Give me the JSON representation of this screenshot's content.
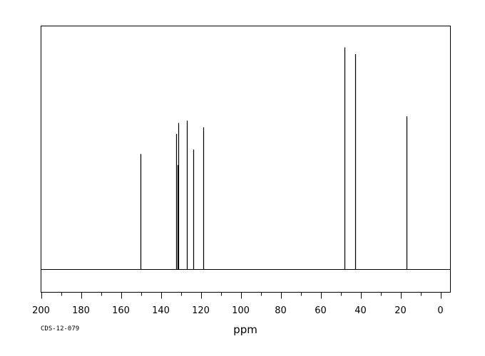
{
  "chart_data": {
    "type": "line",
    "title": "",
    "xlabel": "ppm",
    "ylabel": "",
    "xlim": [
      200,
      -5
    ],
    "ylim": [
      -0.12,
      1.1
    ],
    "x_reversed": true,
    "grid": false,
    "legend": "none",
    "baseline_y": 0,
    "major_ticks": [
      200,
      180,
      160,
      140,
      120,
      100,
      80,
      60,
      40,
      20,
      0
    ],
    "tick_labels": [
      "200",
      "180",
      "160",
      "140",
      "120",
      "100",
      "80",
      "60",
      "40",
      "20",
      "0"
    ],
    "minor_tick_step": 10,
    "peaks": [
      {
        "ppm": 150.3,
        "intensity": 0.52
      },
      {
        "ppm": 132.4,
        "intensity": 0.61
      },
      {
        "ppm": 131.7,
        "intensity": 0.47
      },
      {
        "ppm": 131.2,
        "intensity": 0.66
      },
      {
        "ppm": 126.9,
        "intensity": 0.67
      },
      {
        "ppm": 123.9,
        "intensity": 0.54
      },
      {
        "ppm": 118.9,
        "intensity": 0.64
      },
      {
        "ppm": 47.9,
        "intensity": 1.0
      },
      {
        "ppm": 42.8,
        "intensity": 0.97
      },
      {
        "ppm": 16.8,
        "intensity": 0.69
      }
    ],
    "line_color": "#000000"
  },
  "footer": {
    "sample_id": "CDS-12-079"
  }
}
